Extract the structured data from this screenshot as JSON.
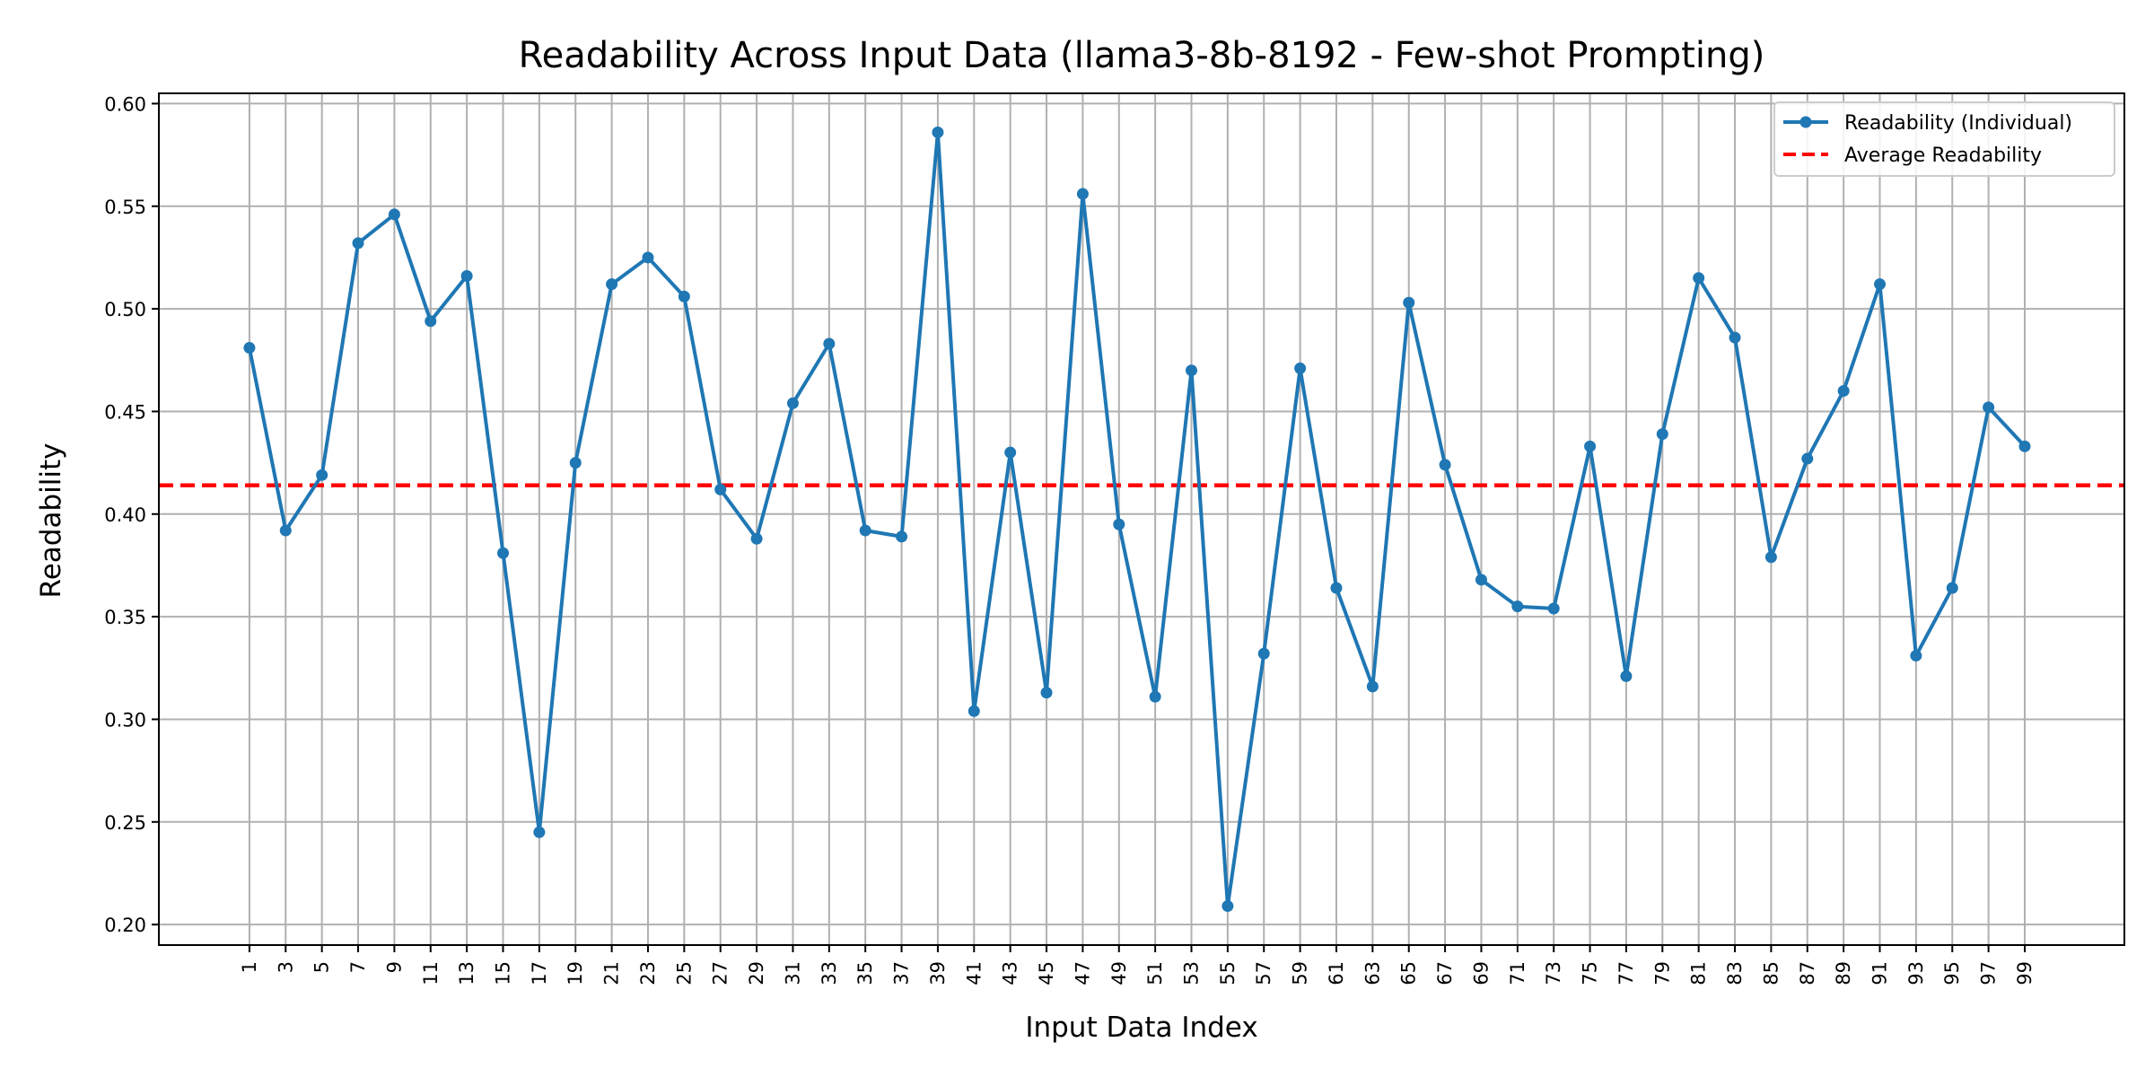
{
  "chart_data": {
    "type": "line",
    "title": "Readability Across Input Data (llama3-8b-8192 - Few-shot Prompting)",
    "xlabel": "Input Data Index",
    "ylabel": "Readability",
    "xlim": [
      -4.0,
      104.5
    ],
    "ylim": [
      0.19,
      0.605
    ],
    "x_ticks": [
      1,
      3,
      5,
      7,
      9,
      11,
      13,
      15,
      17,
      19,
      21,
      23,
      25,
      27,
      29,
      31,
      33,
      35,
      37,
      39,
      41,
      43,
      45,
      47,
      49,
      51,
      53,
      55,
      57,
      59,
      61,
      63,
      65,
      67,
      69,
      71,
      73,
      75,
      77,
      79,
      81,
      83,
      85,
      87,
      89,
      91,
      93,
      95,
      97,
      99
    ],
    "y_ticks": [
      "0.20",
      "0.25",
      "0.30",
      "0.35",
      "0.40",
      "0.45",
      "0.50",
      "0.55",
      "0.60"
    ],
    "grid": true,
    "legend_position": "top-right",
    "series": [
      {
        "name": "Readability (Individual)",
        "style": "solid line with circle markers",
        "color": "#1f77b4",
        "x": [
          1,
          3,
          5,
          7,
          9,
          11,
          13,
          15,
          17,
          19,
          21,
          23,
          25,
          27,
          29,
          31,
          33,
          35,
          37,
          39,
          41,
          43,
          45,
          47,
          49,
          51,
          53,
          55,
          57,
          59,
          61,
          63,
          65,
          67,
          69,
          71,
          73,
          75,
          77,
          79,
          81,
          83,
          85,
          87,
          89,
          91,
          93,
          95,
          97,
          99
        ],
        "y": [
          0.481,
          0.392,
          0.419,
          0.532,
          0.546,
          0.494,
          0.516,
          0.381,
          0.245,
          0.425,
          0.512,
          0.525,
          0.506,
          0.412,
          0.388,
          0.454,
          0.483,
          0.392,
          0.389,
          0.586,
          0.304,
          0.43,
          0.313,
          0.556,
          0.395,
          0.311,
          0.47,
          0.209,
          0.332,
          0.471,
          0.364,
          0.316,
          0.503,
          0.424,
          0.368,
          0.355,
          0.354,
          0.433,
          0.321,
          0.439,
          0.515,
          0.486,
          0.379,
          0.427,
          0.46,
          0.512,
          0.331,
          0.364,
          0.452,
          0.433
        ]
      },
      {
        "name": "Average Readability",
        "style": "dashed horizontal line",
        "color": "#ff0000",
        "value": 0.414
      }
    ]
  }
}
